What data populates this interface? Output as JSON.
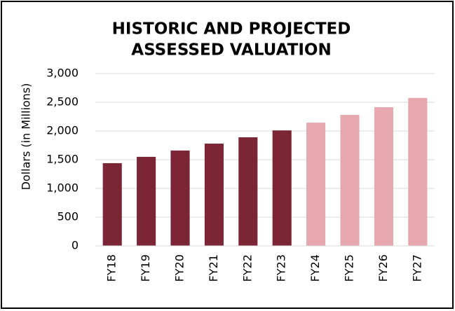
{
  "chart_data": {
    "type": "bar",
    "title": [
      "HISTORIC AND PROJECTED",
      "ASSESSED VALUATION"
    ],
    "y_label": "Dollars (in Millions)",
    "categories": [
      "FY18",
      "FY19",
      "FY20",
      "FY21",
      "FY22",
      "FY23",
      "FY24",
      "FY25",
      "FY26",
      "FY27"
    ],
    "values": [
      1440,
      1550,
      1660,
      1780,
      1890,
      2010,
      2145,
      2280,
      2415,
      2575
    ],
    "colors": [
      "#7b2535",
      "#7b2535",
      "#7b2535",
      "#7b2535",
      "#7b2535",
      "#7b2535",
      "#e6a8ae",
      "#e6a8ae",
      "#e6a8ae",
      "#e6a8ae"
    ],
    "ylim": [
      0,
      3000
    ],
    "yticks": [
      0,
      500,
      {
        "value": 1000,
        "label": "1,000"
      },
      {
        "value": 1500,
        "label": "1,500"
      },
      {
        "value": 2000,
        "label": "2,000"
      },
      {
        "value": 2500,
        "label": "2,500"
      },
      {
        "value": 3000,
        "label": "3,000"
      }
    ],
    "grid": true
  }
}
